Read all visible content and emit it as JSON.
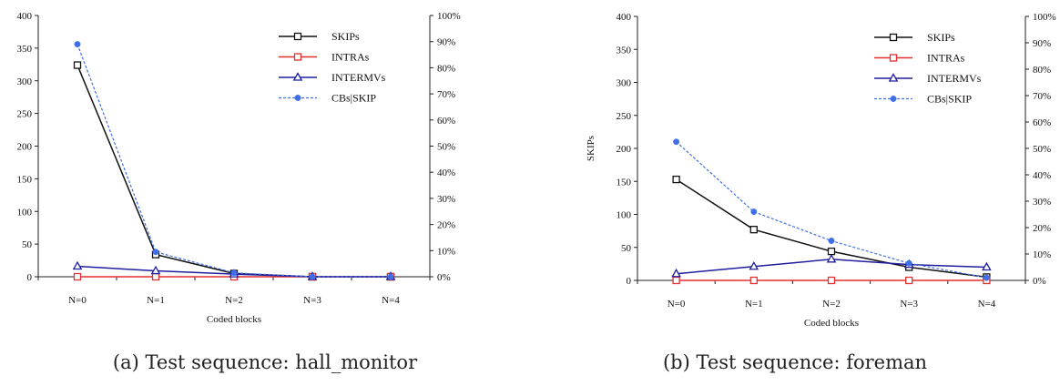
{
  "chart_data": [
    {
      "type": "line",
      "categories": [
        "N=0",
        "N=1",
        "N=2",
        "N=3",
        "N=4"
      ],
      "xlabel": "Coded blocks",
      "ylabel": "",
      "ylim": [
        0,
        400
      ],
      "y_ticks": [
        "0",
        "50",
        "100",
        "150",
        "200",
        "250",
        "300",
        "350",
        "400"
      ],
      "y2lim": [
        0,
        100
      ],
      "y2_ticks": [
        "0%",
        "10%",
        "20%",
        "30%",
        "40%",
        "50%",
        "60%",
        "70%",
        "80%",
        "90%",
        "100%"
      ],
      "grid": false,
      "legend": "top-right",
      "series": [
        {
          "name": "SKIPs",
          "axis": "left",
          "color": "#111111",
          "marker": "square",
          "dash": false,
          "values": [
            324,
            34,
            5,
            0,
            0
          ]
        },
        {
          "name": "INTRAs",
          "axis": "left",
          "color": "#e03030",
          "marker": "square",
          "dash": false,
          "values": [
            0,
            0,
            0,
            0,
            0
          ]
        },
        {
          "name": "INTERMVs",
          "axis": "left",
          "color": "#1f1f9e",
          "marker": "triangle",
          "dash": false,
          "values": [
            16,
            9,
            4,
            0,
            0
          ]
        },
        {
          "name": "CBs|SKIP",
          "axis": "right",
          "color": "#3f6fe8",
          "marker": "circle",
          "dash": true,
          "values": [
            89,
            9.5,
            1.5,
            0,
            0
          ]
        }
      ]
    },
    {
      "type": "line",
      "categories": [
        "N=0",
        "N=1",
        "N=2",
        "N=3",
        "N=4"
      ],
      "xlabel": "Coded blocks",
      "ylabel": "SKIPs",
      "ylim": [
        0,
        400
      ],
      "y_ticks": [
        "0",
        "50",
        "100",
        "150",
        "200",
        "250",
        "300",
        "350",
        "400"
      ],
      "y2lim": [
        0,
        100
      ],
      "y2_ticks": [
        "0%",
        "10%",
        "20%",
        "30%",
        "40%",
        "50%",
        "60%",
        "70%",
        "80%",
        "90%",
        "100%"
      ],
      "grid": false,
      "legend": "top-right",
      "series": [
        {
          "name": "SKIPs",
          "axis": "left",
          "color": "#111111",
          "marker": "square",
          "dash": false,
          "values": [
            153,
            77,
            44,
            20,
            5
          ]
        },
        {
          "name": "INTRAs",
          "axis": "left",
          "color": "#e03030",
          "marker": "square",
          "dash": false,
          "values": [
            0,
            0,
            0,
            0,
            0
          ]
        },
        {
          "name": "INTERMVs",
          "axis": "left",
          "color": "#1f1f9e",
          "marker": "triangle",
          "dash": false,
          "values": [
            10,
            21,
            32,
            24,
            20
          ]
        },
        {
          "name": "CBs|SKIP",
          "axis": "right",
          "color": "#3f6fe8",
          "marker": "circle",
          "dash": true,
          "values": [
            52.5,
            26,
            15,
            6.5,
            1
          ]
        }
      ]
    }
  ],
  "captions": [
    "(a) Test sequence: hall_monitor",
    "(b) Test sequence: foreman"
  ]
}
